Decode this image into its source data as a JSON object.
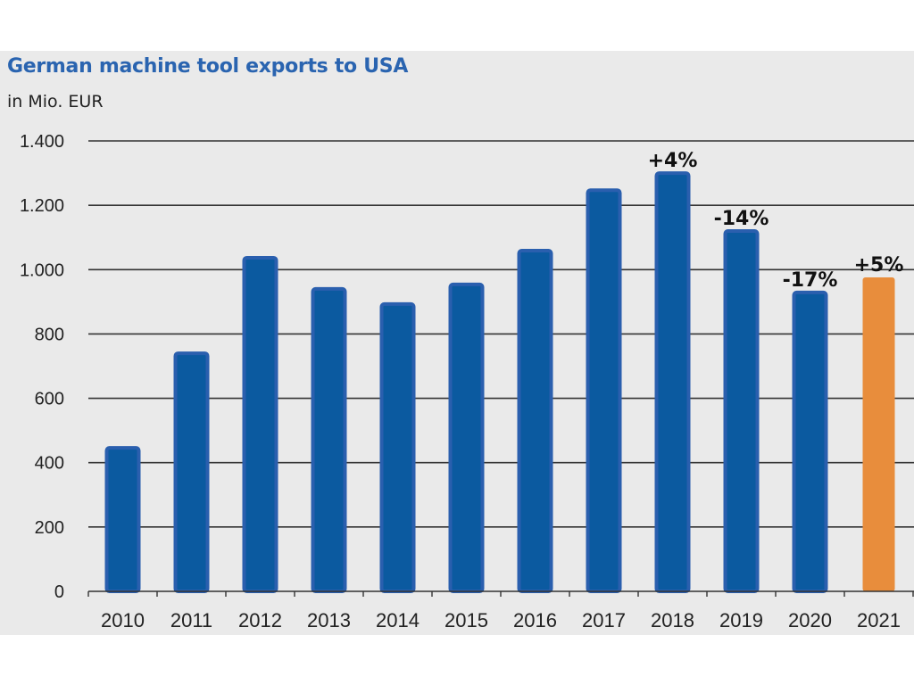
{
  "chart_data": {
    "type": "bar",
    "title": "German machine tool exports to USA",
    "subtitle": "in Mio. EUR",
    "xlabel": "",
    "ylabel": "in Mio. EUR",
    "ylim": [
      0,
      1400
    ],
    "yticks": [
      0,
      200,
      400,
      600,
      800,
      1000,
      1200,
      1400
    ],
    "ytick_labels": [
      "0",
      "200",
      "400",
      "600",
      "800",
      "1.000",
      "1.200",
      "1.400"
    ],
    "grid": true,
    "categories": [
      "2010",
      "2011",
      "2012",
      "2013",
      "2014",
      "2015",
      "2016",
      "2017",
      "2018",
      "2019",
      "2020",
      "2021"
    ],
    "values": [
      446,
      740,
      1037,
      940,
      893,
      954,
      1059,
      1247,
      1300,
      1120,
      929,
      976
    ],
    "bar_colors": [
      "#0b5aa0",
      "#0b5aa0",
      "#0b5aa0",
      "#0b5aa0",
      "#0b5aa0",
      "#0b5aa0",
      "#0b5aa0",
      "#0b5aa0",
      "#0b5aa0",
      "#0b5aa0",
      "#0b5aa0",
      "#e88d3c"
    ],
    "annotations": [
      {
        "category": "2018",
        "text": "+4%"
      },
      {
        "category": "2019",
        "text": "-14%"
      },
      {
        "category": "2020",
        "text": "-17%"
      },
      {
        "category": "2021",
        "text": "+5%"
      }
    ]
  },
  "colors": {
    "bar_primary": "#0b5aa0",
    "bar_primary_edge": "#2a5fae",
    "bar_highlight": "#e88d3c",
    "title": "#2a64b0",
    "background": "#eaeaea"
  }
}
